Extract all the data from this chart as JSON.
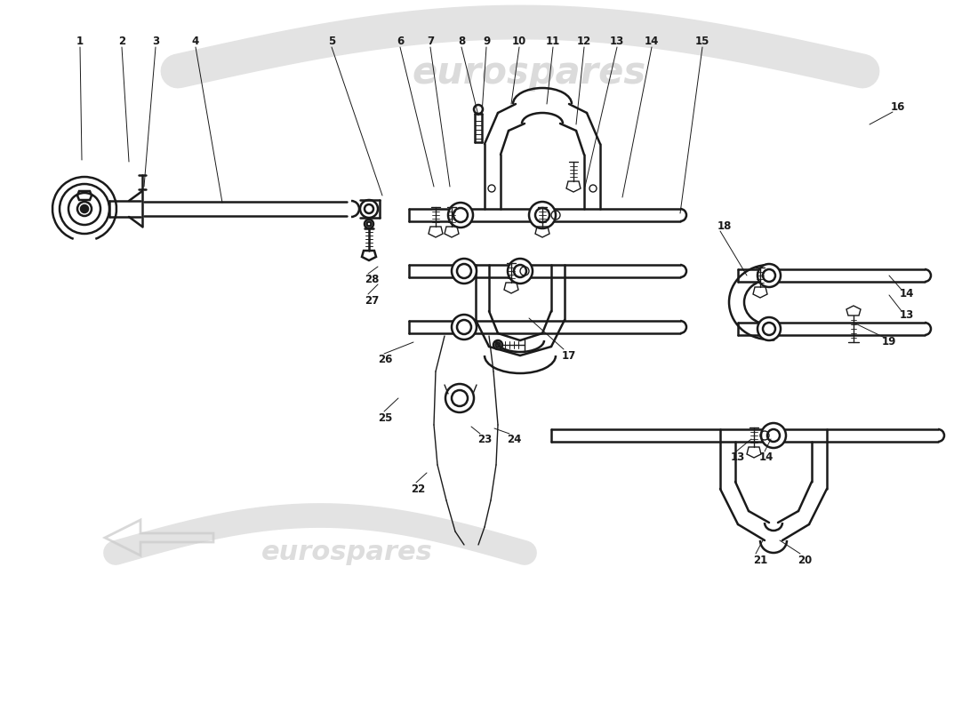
{
  "bg_color": "#ffffff",
  "line_color": "#1a1a1a",
  "wm_color": "#cccccc",
  "wm_alpha": 0.55,
  "lw_thick": 1.8,
  "lw_thin": 1.0,
  "lw_callout": 0.7
}
